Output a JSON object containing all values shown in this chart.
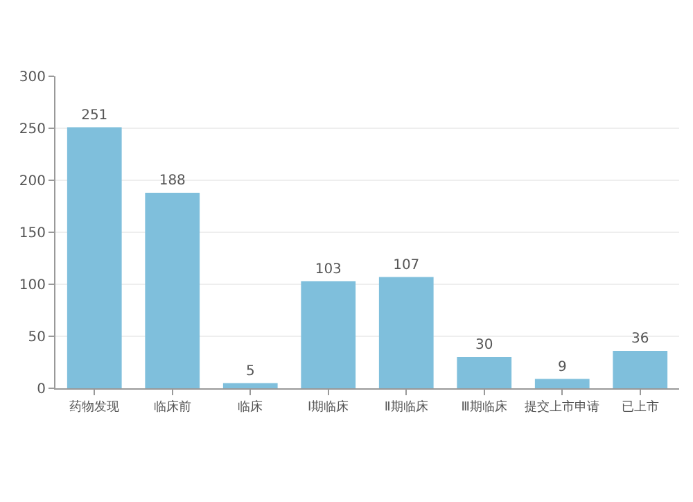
{
  "chart_data": {
    "type": "bar",
    "categories": [
      "药物发现",
      "临床前",
      "临床",
      "Ⅰ期临床",
      "Ⅱ期临床",
      "Ⅲ期临床",
      "提交上市申请",
      "已上市"
    ],
    "values": [
      251,
      188,
      5,
      103,
      107,
      30,
      9,
      36
    ],
    "color": "#7fbfdc",
    "ylim": [
      0,
      300
    ],
    "yticks": [
      0,
      50,
      100,
      150,
      200,
      250,
      300
    ],
    "grid": "y",
    "data_labels": true
  }
}
